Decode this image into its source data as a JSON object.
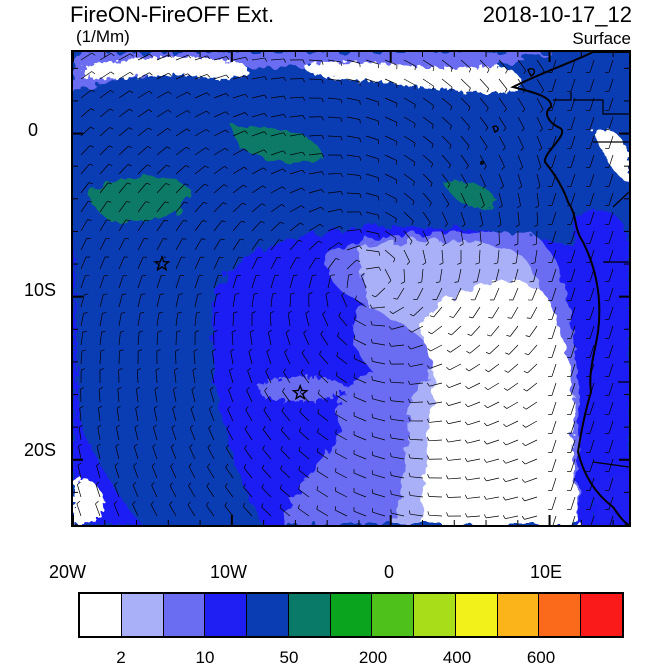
{
  "title": "FireON-FireOFF Ext.",
  "units": "(1/Mm)",
  "datetime": "2018-10-17_12",
  "level": "Surface",
  "lon_labels": [
    "20W",
    "10W",
    "0",
    "10E"
  ],
  "lat_labels": [
    "0",
    "10S",
    "20S"
  ],
  "colorbar": {
    "colors": [
      "#ffffff",
      "#a9b0f7",
      "#6a6cf2",
      "#1f1ff4",
      "#0a3cb4",
      "#0a7a68",
      "#0aa41f",
      "#4ec21a",
      "#a8dd1a",
      "#f2f21a",
      "#fbb41a",
      "#fb6a1a",
      "#fb1a1a"
    ],
    "labels": [
      "2",
      "10",
      "50",
      "200",
      "400",
      "600"
    ]
  },
  "map_extent": {
    "lon_min": -20,
    "lon_max": 15,
    "lat_min": -24,
    "lat_max": 5
  },
  "markers": [
    {
      "type": "star",
      "lon": -14.4,
      "lat": -8.0
    },
    {
      "type": "star",
      "lon": -5.7,
      "lat": -15.9
    }
  ]
}
